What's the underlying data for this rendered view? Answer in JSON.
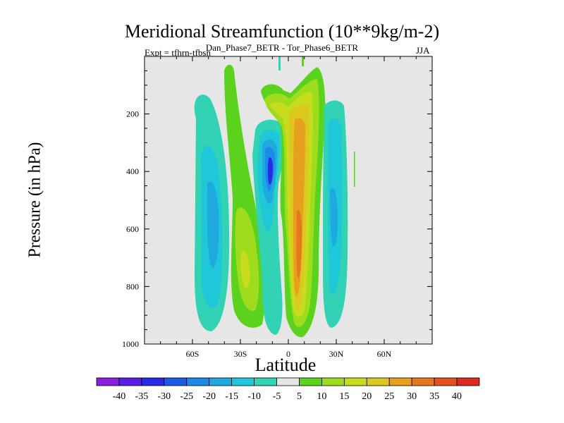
{
  "chart_data": {
    "type": "contour",
    "title": "Meridional Streamfunction (10**9kg/m-2)",
    "subtitle": "Dan_Phase7_BETR - Tor_Phase6_BETR",
    "experiment_label": "Expt = tfhrn-tfbsn",
    "season": "JJA",
    "xlabel": "Latitude",
    "ylabel": "Pressure (in hPa)",
    "xlim": [
      -90,
      90
    ],
    "ylim": [
      1000,
      0
    ],
    "x_ticks": [
      -60,
      -30,
      0,
      30,
      60
    ],
    "x_tick_labels": [
      "60S",
      "30S",
      "0",
      "30N",
      "60N"
    ],
    "y_ticks": [
      200,
      400,
      600,
      800,
      1000
    ],
    "y_tick_labels": [
      "200",
      "400",
      "600",
      "800",
      "1000"
    ],
    "colorbar": {
      "labels": [
        "-40",
        "-35",
        "-30",
        "-25",
        "-20",
        "-15",
        "-10",
        "-5",
        "5",
        "10",
        "15",
        "20",
        "25",
        "30",
        "35",
        "40"
      ],
      "colors": [
        "#8a1ee0",
        "#5a1ee6",
        "#2a2ae6",
        "#1e5ae8",
        "#1e8ae8",
        "#1eaadf",
        "#1ec8d8",
        "#32d2b4",
        "#e6e6e6",
        "#5ad21e",
        "#a0dc1e",
        "#c8dc1e",
        "#dcc81e",
        "#e6a01e",
        "#e6781e",
        "#e6501e",
        "#dc2a1e"
      ]
    },
    "features": [
      {
        "name": "southern-hemisphere-negative-cell",
        "lat_center": -45,
        "p_center": 550,
        "value": -15
      },
      {
        "name": "subtropical-positive-band",
        "lat_center": -27,
        "p_center": 600,
        "value": 15
      },
      {
        "name": "equatorial-negative-cell",
        "lat_center": -12,
        "p_center": 400,
        "value": -35
      },
      {
        "name": "hadley-positive-cell",
        "lat_center": 8,
        "p_center": 600,
        "value": 30
      },
      {
        "name": "northern-negative-cell",
        "lat_center": 28,
        "p_center": 600,
        "value": -15
      }
    ]
  }
}
